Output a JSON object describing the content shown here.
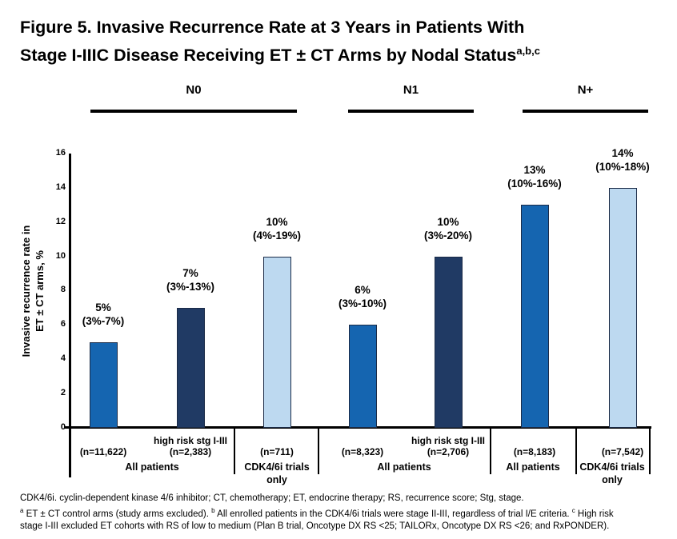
{
  "title": {
    "line1": "Figure 5. Invasive Recurrence Rate at 3 Years in Patients With",
    "line2": "Stage I-IIIC Disease Receiving ET ± CT Arms by Nodal Status",
    "line2_sup": "a,b,c"
  },
  "chart_data": {
    "type": "bar",
    "title": "Invasive Recurrence Rate at 3 Years by Nodal Status",
    "ylabel_line1": "Invasive recurrence rate in",
    "ylabel_line2": "ET ± CT arms, %",
    "ylim": [
      0,
      16
    ],
    "yticks": [
      16,
      14,
      12,
      10,
      8,
      6,
      4,
      2,
      0
    ],
    "grid": false,
    "legend": "none",
    "group_headers": [
      "N0",
      "N1",
      "N+"
    ],
    "colors": {
      "medium_blue": "#1565b0",
      "dark_navy": "#203a64",
      "light_blue": "#bdd9f0"
    },
    "bar_border_color": "#1b2b47",
    "bars": [
      {
        "group": "N0",
        "cohort": "All patients",
        "value": 5,
        "value_label": "5%",
        "ci": "(3%-7%)",
        "risk_label": "",
        "n": "(n=11,622)",
        "color": "medium_blue"
      },
      {
        "group": "N0",
        "cohort": "All patients",
        "value": 7,
        "value_label": "7%",
        "ci": "(3%-13%)",
        "risk_label": "high risk stg I-III",
        "n": "(n=2,383)",
        "color": "dark_navy"
      },
      {
        "group": "N0",
        "cohort": "CDK4/6i trials only",
        "value": 10,
        "value_label": "10%",
        "ci": "(4%-19%)",
        "risk_label": "",
        "n": "(n=711)",
        "color": "light_blue"
      },
      {
        "group": "N1",
        "cohort": "All patients",
        "value": 6,
        "value_label": "6%",
        "ci": "(3%-10%)",
        "risk_label": "",
        "n": "(n=8,323)",
        "color": "medium_blue"
      },
      {
        "group": "N1",
        "cohort": "All patients",
        "value": 10,
        "value_label": "10%",
        "ci": "(3%-20%)",
        "risk_label": "high risk stg I-III",
        "n": "(n=2,706)",
        "color": "dark_navy"
      },
      {
        "group": "N+",
        "cohort": "All patients",
        "value": 13,
        "value_label": "13%",
        "ci": "(10%-16%)",
        "risk_label": "",
        "n": "(n=8,183)",
        "color": "medium_blue"
      },
      {
        "group": "N+",
        "cohort": "CDK4/6i trials only",
        "value": 14,
        "value_label": "14%",
        "ci": "(10%-18%)",
        "risk_label": "",
        "n": "(n=7,542)",
        "color": "light_blue"
      }
    ],
    "cohort_cells": [
      {
        "group": "N0",
        "label": "All patients"
      },
      {
        "group": "N0",
        "label": "CDK4/6i trials only"
      },
      {
        "group": "N1",
        "label": "All patients"
      },
      {
        "group": "N+",
        "label": "All patients"
      },
      {
        "group": "N+",
        "label": "CDK4/6i trials only"
      }
    ]
  },
  "footnotes": {
    "line1": "CDK4/6i. cyclin-dependent kinase 4/6 inhibitor; CT, chemotherapy; ET, endocrine therapy; RS, recurrence score; Stg, stage.",
    "sup_a": "a",
    "line2a": " ET ± CT control arms (study arms excluded). ",
    "sup_b": "b",
    "line2b": " All enrolled patients in the CDK4/6i trials were stage II-III, regardless of trial I/E criteria. ",
    "sup_c": "c",
    "line2c": " High risk",
    "line3": "stage I-III excluded ET cohorts with RS of low to medium (Plan B trial, Oncotype DX RS <25; TAILORx, Oncotype DX RS <26; and RxPONDER)."
  }
}
